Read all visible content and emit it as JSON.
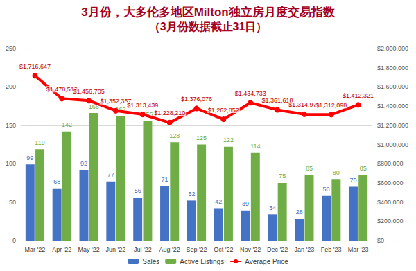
{
  "chart_data": {
    "type": "bar",
    "title": "3月份，大多伦多地区Milton独立房月度交易指数",
    "subtitle": "（3月份数据截止31日）",
    "categories": [
      "Mar '22",
      "Apr '22",
      "May '22",
      "Jun '22",
      "Jul '22",
      "Aug '22",
      "Sep '22",
      "Oct '22",
      "Nov '22",
      "Dec '22",
      "Jan '23",
      "Feb '23",
      "Mar '23"
    ],
    "series": [
      {
        "name": "Sales",
        "type": "bar",
        "color": "#4472c4",
        "values": [
          99,
          68,
          92,
          77,
          56,
          71,
          52,
          42,
          39,
          34,
          28,
          58,
          70
        ]
      },
      {
        "name": "Active Listings",
        "type": "bar",
        "color": "#70ad47",
        "values": [
          119,
          142,
          166,
          162,
          156,
          128,
          125,
          122,
          114,
          75,
          85,
          80,
          85
        ]
      },
      {
        "name": "Average Price",
        "type": "line",
        "axis": "y2",
        "color": "#ff0000",
        "marker": "circle",
        "line_style": "solid",
        "values": [
          1716647,
          1478513,
          1456705,
          1352357,
          1313439,
          1228210,
          1376076,
          1262852,
          1434733,
          1361618,
          1314975,
          1312098,
          1412321
        ],
        "value_labels": [
          "$1,716,647",
          "$1,478,513",
          "$1,456,705",
          "$1,352,357",
          "$1,313,439",
          "$1,228,210",
          "$1,376,076",
          "$1,262,852",
          "$1,434,733",
          "$1,361,618",
          "$1,314,975",
          "$1,312,098",
          "$1,412,321"
        ]
      }
    ],
    "ylim": [
      0,
      250
    ],
    "yticks": [
      0,
      50,
      100,
      150,
      200,
      250
    ],
    "y2lim": [
      0,
      2000000
    ],
    "y2ticks": [
      {
        "value": 0,
        "label": "$0"
      },
      {
        "value": 200000,
        "label": "$200,000"
      },
      {
        "value": 400000,
        "label": "$400,000"
      },
      {
        "value": 600000,
        "label": "$600,000"
      },
      {
        "value": 800000,
        "label": "$800,000"
      },
      {
        "value": 1000000,
        "label": "$1,000,000"
      },
      {
        "value": 1200000,
        "label": "$1,200,000"
      },
      {
        "value": 1400000,
        "label": "$1,400,000"
      },
      {
        "value": 1600000,
        "label": "$1,600,000"
      },
      {
        "value": 1800000,
        "label": "$1,800,000"
      },
      {
        "value": 2000000,
        "label": "$2,000,000"
      }
    ],
    "grid": true,
    "legend": "bottom",
    "data_labels": true
  }
}
